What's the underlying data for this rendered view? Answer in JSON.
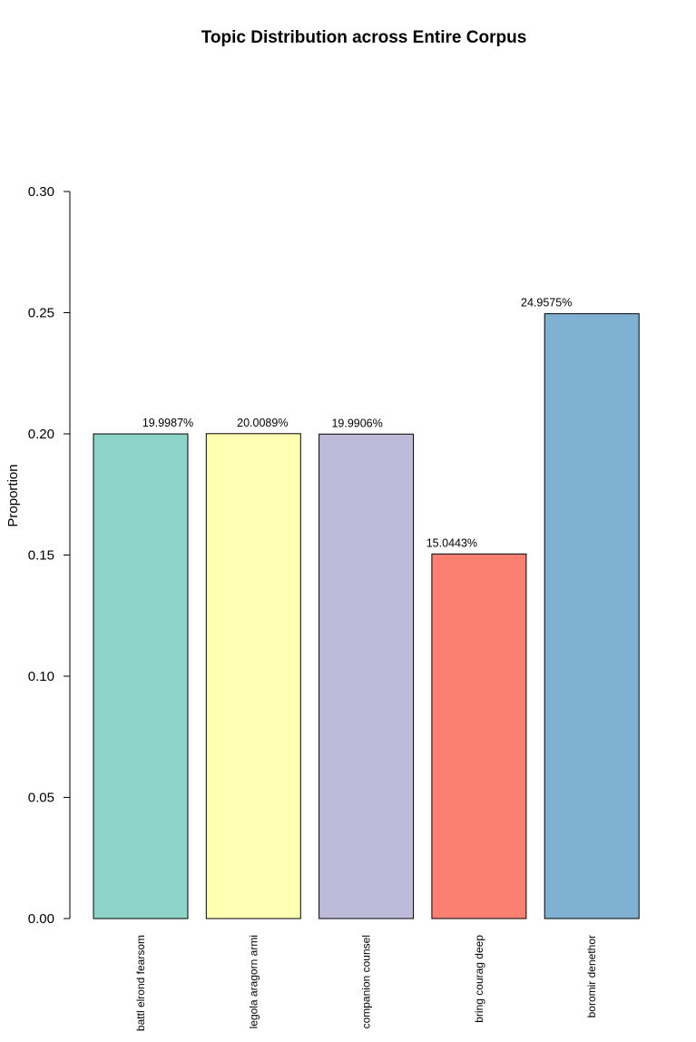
{
  "chart_data": {
    "type": "bar",
    "title": "Topic Distribution across Entire Corpus",
    "xlabel": "",
    "ylabel": "Proportion",
    "categories": [
      "battl elrond fearsom",
      "legola aragorn armi",
      "companion counsel",
      "bring courag deep",
      "boromir denethor"
    ],
    "values": [
      0.199987,
      0.200089,
      0.199906,
      0.150443,
      0.249575
    ],
    "data_labels": [
      "19.9987%",
      "20.0089%",
      "19.9906%",
      "15.0443%",
      "24.9575%"
    ],
    "colors": [
      "#8DD3C7",
      "#FFFFB3",
      "#BEBADA",
      "#FB8072",
      "#80B1D3"
    ],
    "ylim": [
      0,
      0.3
    ],
    "yticks": [
      0,
      0.05,
      0.1,
      0.15,
      0.2,
      0.25,
      0.3
    ],
    "ytick_labels": [
      "0.00",
      "0.05",
      "0.10",
      "0.15",
      "0.20",
      "0.25",
      "0.30"
    ],
    "grid": false,
    "legend": "none"
  }
}
